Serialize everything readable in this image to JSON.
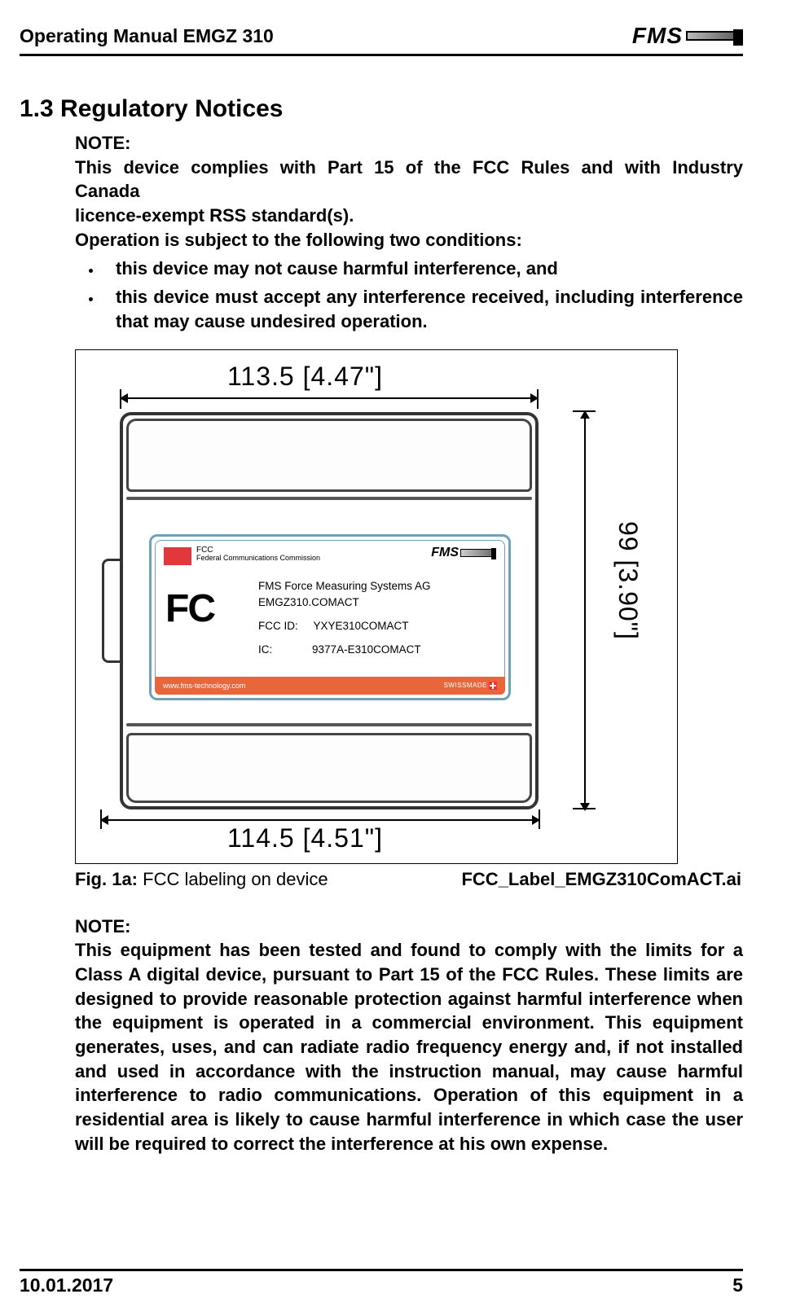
{
  "header": {
    "title": "Operating Manual EMGZ 310",
    "logo_text": "FMS"
  },
  "section": {
    "number_title": "1.3  Regulatory Notices",
    "note_label": "NOTE:",
    "para1_line1": "This device complies with Part 15 of the FCC Rules and with Industry Canada",
    "para1_line2": "licence-exempt RSS standard(s).",
    "para1_line3": "Operation is subject to the following two conditions:",
    "bullet1": "this device may not cause harmful interference, and",
    "bullet2": "this device must accept any interference received, including interference that may cause undesired operation."
  },
  "figure": {
    "dim_top": "113.5  [4.47\"]",
    "dim_right": "99  [3.90\"]",
    "dim_bottom": "114.5  [4.51\"]",
    "label": {
      "fcc_tiny_l1": "FCC",
      "fcc_tiny_l2": "Federal Communications Commission",
      "logo_text": "FMS",
      "line1": "FMS Force Measuring Systems AG",
      "line2": "EMGZ310.COMACT",
      "line3_k": "FCC ID:",
      "line3_v": "YXYE310COMACT",
      "line4_k": "IC:",
      "line4_v": "9377A-E310COMACT",
      "footer_url": "www.fms-technology.com",
      "footer_sw": "SWISSMADE"
    },
    "fcc_big": "FC",
    "caption_bold": "Fig. 1a:",
    "caption_rest": " FCC labeling on device",
    "caption_right": "FCC_Label_EMGZ310ComACT.ai"
  },
  "note2": {
    "label": "NOTE:",
    "body": "This equipment has been tested and found to comply with the limits for a Class A digital device, pursuant to Part 15 of the FCC Rules. These limits are designed to provide reasonable protection against harmful interference when the equipment is operated in a commercial environment. This equipment generates, uses, and can radiate radio frequency energy and, if not installed and used in accordance with the instruction manual, may cause harmful interference to radio communications. Operation of this equipment in a residential area is likely to cause harmful interference in which case the user will be required to correct the interference at his own expense."
  },
  "footer": {
    "date": "10.01.2017",
    "page": "5"
  },
  "colors": {
    "accent_red": "#e1383c",
    "accent_orange": "#e9663a",
    "card_border": "#6fa1b8"
  }
}
